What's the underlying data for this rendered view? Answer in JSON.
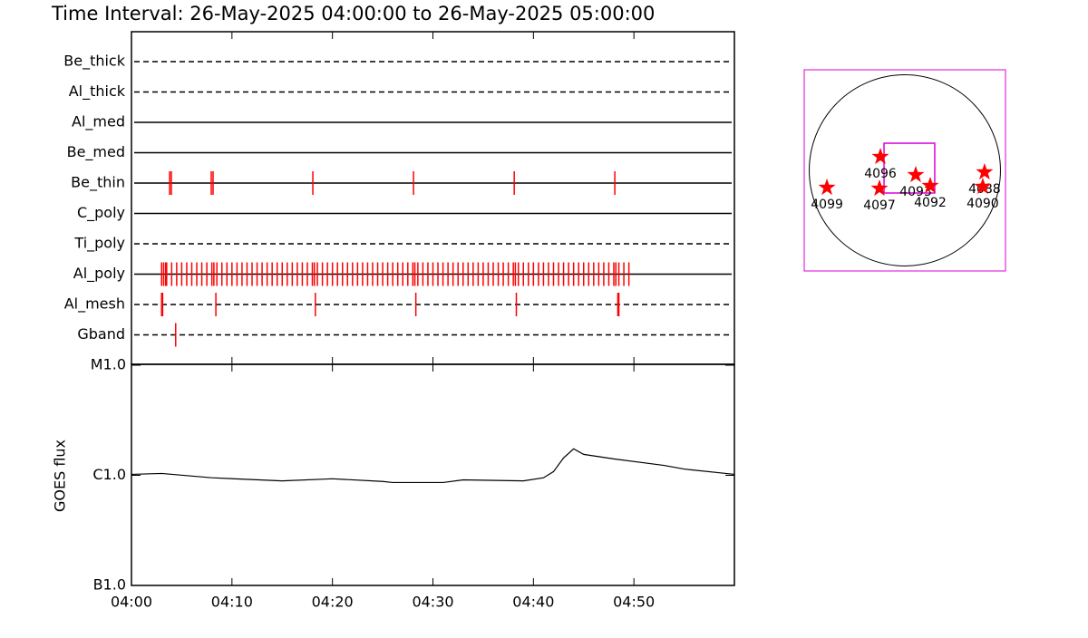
{
  "title": "Time Interval: 26-May-2025 04:00:00 to 26-May-2025 05:00:00",
  "chart_data": [
    {
      "type": "timeline",
      "categories": [
        "Be_thick",
        "Al_thick",
        "Al_med",
        "Be_med",
        "Be_thin",
        "C_poly",
        "Ti_poly",
        "Al_poly",
        "Al_mesh",
        "Gband"
      ],
      "line_styles": [
        "dashed",
        "dashed",
        "solid",
        "solid",
        "solid",
        "solid",
        "dashed",
        "solid",
        "dashed",
        "dashed"
      ],
      "color": "#ff0000",
      "xlim": [
        0,
        60
      ],
      "events": [
        [],
        [],
        [],
        [],
        [
          3.8,
          3.97,
          7.94,
          8.12,
          18.05,
          28.07,
          38.09,
          48.1
        ],
        [],
        [],
        [
          3.0,
          3.2,
          3.4,
          3.5,
          4.0,
          4.5,
          5.0,
          5.5,
          6.0,
          6.5,
          7.0,
          7.5,
          8.0,
          8.2,
          8.5,
          9.0,
          9.5,
          10.0,
          10.5,
          11.0,
          11.5,
          12.0,
          12.5,
          13.0,
          13.5,
          14.0,
          14.5,
          15.0,
          15.5,
          16.0,
          16.5,
          17.0,
          17.5,
          18.0,
          18.2,
          18.5,
          19.0,
          19.5,
          20.0,
          20.5,
          21.0,
          21.5,
          22.0,
          22.5,
          23.0,
          23.5,
          24.0,
          24.5,
          25.0,
          25.5,
          26.0,
          26.5,
          27.0,
          27.5,
          28.0,
          28.2,
          28.5,
          29.0,
          29.5,
          30.0,
          30.5,
          31.0,
          31.5,
          32.0,
          32.5,
          33.0,
          33.5,
          34.0,
          34.5,
          35.0,
          35.5,
          36.0,
          36.5,
          37.0,
          37.5,
          38.0,
          38.2,
          38.5,
          39.0,
          39.5,
          40.0,
          40.5,
          41.0,
          41.5,
          42.0,
          42.5,
          43.0,
          43.5,
          44.0,
          44.5,
          45.0,
          45.5,
          46.0,
          46.5,
          47.0,
          47.5,
          48.0,
          48.2,
          48.5,
          49.0,
          49.5
        ],
        [
          3.0,
          3.1,
          8.4,
          18.3,
          28.3,
          38.3,
          48.4,
          48.5
        ],
        [
          4.4
        ]
      ]
    },
    {
      "type": "line",
      "y_label": "GOES flux",
      "log_y": true,
      "color": "#000000",
      "x": [
        0,
        3,
        8,
        15,
        20,
        25,
        26,
        31,
        33,
        39,
        41,
        42,
        43,
        44,
        45,
        48,
        53,
        55,
        60
      ],
      "values": [
        1.02e-06,
        1.04e-06,
        9.5e-07,
        8.9e-07,
        9.3e-07,
        8.8e-07,
        8.6e-07,
        8.6e-07,
        9.1e-07,
        8.9e-07,
        9.5e-07,
        1.08e-06,
        1.44e-06,
        1.74e-06,
        1.55e-06,
        1.41e-06,
        1.23e-06,
        1.14e-06,
        1.02e-06
      ],
      "xlim": [
        0,
        60
      ],
      "xticks": [
        {
          "value": 0,
          "label": "04:00"
        },
        {
          "value": 10,
          "label": "04:10"
        },
        {
          "value": 20,
          "label": "04:20"
        },
        {
          "value": 30,
          "label": "04:30"
        },
        {
          "value": 40,
          "label": "04:40"
        },
        {
          "value": 50,
          "label": "04:50"
        }
      ],
      "ylim": [
        1e-07,
        1e-05
      ],
      "yticks": [
        {
          "value": 1e-07,
          "label": "B1.0"
        },
        {
          "value": 1e-06,
          "label": "C1.0"
        },
        {
          "value": 1e-05,
          "label": "M1.0"
        }
      ]
    },
    {
      "type": "map",
      "color": "#ff0000",
      "box_color": "#dd00dd",
      "xlim": [
        -1000,
        1000
      ],
      "ylim": [
        -1000,
        1000
      ],
      "disk_radius": 950,
      "fov": {
        "xlim": [
          -207,
          297
        ],
        "ylim": [
          -225,
          270
        ]
      },
      "labels": [
        "4099",
        "4096",
        "4097",
        "4093",
        "4092",
        "4088",
        "4090"
      ],
      "x": [
        -774,
        -243,
        -252,
        108,
        252,
        792,
        774
      ],
      "values": [
        -171,
        135,
        -180,
        -45,
        -153,
        -18,
        -162
      ]
    }
  ]
}
